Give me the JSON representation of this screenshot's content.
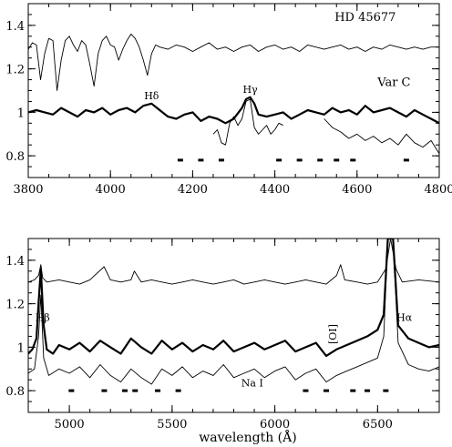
{
  "chart_data": [
    {
      "type": "line",
      "panel": "top",
      "xlim": [
        3800,
        4800
      ],
      "ylim": [
        0.7,
        1.5
      ],
      "x_ticks": [
        3800,
        4000,
        4200,
        4400,
        4600,
        4800
      ],
      "y_ticks": [
        0.8,
        1,
        1.2,
        1.4
      ],
      "x_tick_labels": [
        "3800",
        "4000",
        "4200",
        "4400",
        "4600",
        "4800"
      ],
      "y_tick_labels": [
        "0.8",
        "1",
        "1.2",
        "1.4"
      ],
      "annotations": [
        {
          "text": "HD 45677",
          "x": 4620,
          "y": 1.42
        },
        {
          "text": "Var C",
          "x": 4690,
          "y": 1.12
        },
        {
          "text": "Hδ",
          "x": 4100,
          "y": 1.06
        },
        {
          "text": "Hγ",
          "x": 4340,
          "y": 1.09
        }
      ],
      "series": [
        {
          "style": "thin",
          "x": [
            3800,
            3810,
            3820,
            3830,
            3840,
            3850,
            3860,
            3870,
            3880,
            3890,
            3900,
            3910,
            3920,
            3930,
            3940,
            3950,
            3960,
            3970,
            3980,
            3990,
            4000,
            4010,
            4020,
            4030,
            4040,
            4050,
            4060,
            4070,
            4080,
            4090,
            4100,
            4110,
            4120,
            4140,
            4160,
            4180,
            4200,
            4220,
            4240,
            4260,
            4280,
            4300,
            4320,
            4340,
            4360,
            4380,
            4400,
            4420,
            4440,
            4460,
            4480,
            4500,
            4520,
            4540,
            4560,
            4580,
            4600,
            4620,
            4640,
            4660,
            4680,
            4700,
            4720,
            4740,
            4760,
            4780,
            4800
          ],
          "y": [
            1.29,
            1.32,
            1.31,
            1.15,
            1.27,
            1.34,
            1.33,
            1.1,
            1.24,
            1.33,
            1.35,
            1.31,
            1.28,
            1.33,
            1.31,
            1.22,
            1.12,
            1.27,
            1.33,
            1.35,
            1.31,
            1.3,
            1.24,
            1.29,
            1.33,
            1.36,
            1.34,
            1.3,
            1.24,
            1.17,
            1.27,
            1.31,
            1.3,
            1.29,
            1.31,
            1.3,
            1.28,
            1.3,
            1.32,
            1.29,
            1.3,
            1.28,
            1.3,
            1.31,
            1.28,
            1.3,
            1.31,
            1.29,
            1.3,
            1.28,
            1.31,
            1.3,
            1.29,
            1.3,
            1.31,
            1.29,
            1.3,
            1.28,
            1.3,
            1.29,
            1.31,
            1.3,
            1.29,
            1.3,
            1.29,
            1.3,
            1.3
          ]
        },
        {
          "style": "thick",
          "x": [
            3800,
            3820,
            3840,
            3860,
            3880,
            3900,
            3920,
            3940,
            3960,
            3980,
            4000,
            4020,
            4040,
            4060,
            4080,
            4100,
            4120,
            4140,
            4160,
            4180,
            4200,
            4220,
            4240,
            4260,
            4280,
            4300,
            4320,
            4330,
            4340,
            4350,
            4360,
            4380,
            4400,
            4420,
            4440,
            4460,
            4480,
            4500,
            4520,
            4540,
            4560,
            4580,
            4600,
            4620,
            4640,
            4660,
            4680,
            4700,
            4720,
            4740,
            4760,
            4780,
            4800
          ],
          "y": [
            1.0,
            1.01,
            1.0,
            0.99,
            1.02,
            1.0,
            0.98,
            1.01,
            1.0,
            1.02,
            0.99,
            1.01,
            1.02,
            1.0,
            1.03,
            1.04,
            1.01,
            0.98,
            0.97,
            0.99,
            1.0,
            0.96,
            0.98,
            0.97,
            0.95,
            0.97,
            1.02,
            1.06,
            1.07,
            1.04,
            0.99,
            0.98,
            0.99,
            1.0,
            0.97,
            0.99,
            1.01,
            1.0,
            0.99,
            1.02,
            1.0,
            1.01,
            0.99,
            1.03,
            1.0,
            1.01,
            1.02,
            1.0,
            0.98,
            1.01,
            0.99,
            0.97,
            0.95
          ]
        },
        {
          "style": "thin",
          "x": [
            4250,
            4260,
            4270,
            4280,
            4290,
            4300,
            4310,
            4320,
            4330,
            4340,
            4350,
            4360,
            4370,
            4380,
            4390,
            4400,
            4410,
            4420
          ],
          "y": [
            0.9,
            0.92,
            0.86,
            0.85,
            0.95,
            0.98,
            0.94,
            0.97,
            1.05,
            1.06,
            0.93,
            0.9,
            0.92,
            0.94,
            0.9,
            0.92,
            0.95,
            0.94
          ]
        },
        {
          "style": "thin",
          "x": [
            4520,
            4540,
            4560,
            4580,
            4600,
            4620,
            4640,
            4660,
            4680,
            4700,
            4720,
            4740,
            4760,
            4780,
            4800
          ],
          "y": [
            0.97,
            0.93,
            0.91,
            0.88,
            0.9,
            0.87,
            0.89,
            0.86,
            0.88,
            0.85,
            0.9,
            0.86,
            0.84,
            0.87,
            0.81
          ]
        }
      ],
      "line_marks": [
        4170,
        4220,
        4270,
        4410,
        4460,
        4510,
        4550,
        4590,
        4720
      ]
    },
    {
      "type": "line",
      "panel": "bottom",
      "xlim": [
        4800,
        6800
      ],
      "ylim": [
        0.7,
        1.5
      ],
      "x_ticks": [
        5000,
        5500,
        6000,
        6500
      ],
      "y_ticks": [
        0.8,
        1,
        1.2,
        1.4
      ],
      "x_tick_labels": [
        "5000",
        "5500",
        "6000",
        "6500"
      ],
      "y_tick_labels": [
        "0.8",
        "1",
        "1.2",
        "1.4"
      ],
      "xlabel": "wavelength (Å)",
      "annotations": [
        {
          "text": "Hβ",
          "x": 4870,
          "y": 1.12
        },
        {
          "text": "Hα",
          "x": 6630,
          "y": 1.12
        },
        {
          "text": "[OI]",
          "x": 6300,
          "y": 1.06
        },
        {
          "text": "Na I",
          "x": 5890,
          "y": 0.82
        }
      ],
      "series": [
        {
          "style": "thin",
          "x": [
            4800,
            4830,
            4850,
            4861,
            4870,
            4890,
            4950,
            5000,
            5050,
            5100,
            5169,
            5200,
            5250,
            5300,
            5316,
            5350,
            5400,
            5450,
            5500,
            5550,
            5600,
            5650,
            5700,
            5750,
            5800,
            5850,
            5900,
            5950,
            6000,
            6050,
            6100,
            6150,
            6200,
            6250,
            6300,
            6320,
            6340,
            6400,
            6450,
            6500,
            6540,
            6563,
            6590,
            6620,
            6700,
            6800
          ],
          "y": [
            1.3,
            1.31,
            1.33,
            1.38,
            1.32,
            1.3,
            1.31,
            1.3,
            1.29,
            1.31,
            1.37,
            1.31,
            1.3,
            1.31,
            1.35,
            1.3,
            1.31,
            1.3,
            1.29,
            1.3,
            1.31,
            1.3,
            1.29,
            1.3,
            1.31,
            1.29,
            1.3,
            1.31,
            1.3,
            1.29,
            1.3,
            1.31,
            1.3,
            1.29,
            1.33,
            1.38,
            1.31,
            1.3,
            1.29,
            1.3,
            1.36,
            1.5,
            1.36,
            1.3,
            1.31,
            1.3
          ]
        },
        {
          "style": "thick",
          "x": [
            4800,
            4820,
            4840,
            4850,
            4861,
            4875,
            4890,
            4920,
            4950,
            5000,
            5050,
            5100,
            5150,
            5200,
            5250,
            5300,
            5350,
            5400,
            5450,
            5500,
            5550,
            5600,
            5650,
            5700,
            5750,
            5800,
            5850,
            5900,
            5950,
            6000,
            6050,
            6100,
            6150,
            6200,
            6250,
            6300,
            6350,
            6400,
            6450,
            6500,
            6530,
            6550,
            6563,
            6575,
            6600,
            6650,
            6700,
            6750,
            6800
          ],
          "y": [
            0.97,
            0.99,
            1.04,
            1.2,
            1.36,
            1.1,
            0.99,
            0.97,
            1.01,
            0.99,
            1.02,
            0.98,
            1.03,
            1.0,
            0.97,
            1.04,
            1.0,
            0.97,
            1.03,
            0.99,
            1.02,
            0.98,
            1.01,
            0.99,
            1.03,
            0.98,
            1.0,
            1.02,
            0.99,
            1.01,
            1.03,
            0.98,
            1.0,
            1.02,
            0.96,
            0.99,
            1.01,
            1.03,
            1.05,
            1.08,
            1.15,
            1.5,
            1.5,
            1.5,
            1.1,
            1.04,
            1.02,
            1.0,
            1.01
          ]
        },
        {
          "style": "thin",
          "x": [
            4800,
            4830,
            4850,
            4861,
            4875,
            4900,
            4950,
            5000,
            5050,
            5100,
            5150,
            5200,
            5250,
            5300,
            5350,
            5400,
            5450,
            5500,
            5550,
            5600,
            5650,
            5700,
            5750,
            5800,
            5850,
            5900,
            5950,
            6000,
            6050,
            6100,
            6150,
            6200,
            6250,
            6300,
            6350,
            6400,
            6450,
            6500,
            6530,
            6550,
            6563,
            6575,
            6600,
            6650,
            6700,
            6750,
            6800
          ],
          "y": [
            0.88,
            0.9,
            1.05,
            1.24,
            0.95,
            0.87,
            0.9,
            0.88,
            0.91,
            0.86,
            0.92,
            0.87,
            0.84,
            0.9,
            0.86,
            0.83,
            0.9,
            0.87,
            0.91,
            0.86,
            0.89,
            0.87,
            0.92,
            0.86,
            0.88,
            0.9,
            0.86,
            0.89,
            0.91,
            0.85,
            0.88,
            0.9,
            0.84,
            0.87,
            0.89,
            0.91,
            0.93,
            0.95,
            1.05,
            1.5,
            1.5,
            1.5,
            1.02,
            0.92,
            0.9,
            0.89,
            0.91
          ]
        }
      ],
      "line_marks": [
        5010,
        5170,
        5270,
        5320,
        5430,
        5530,
        6150,
        6250,
        6380,
        6450,
        6540
      ]
    }
  ]
}
